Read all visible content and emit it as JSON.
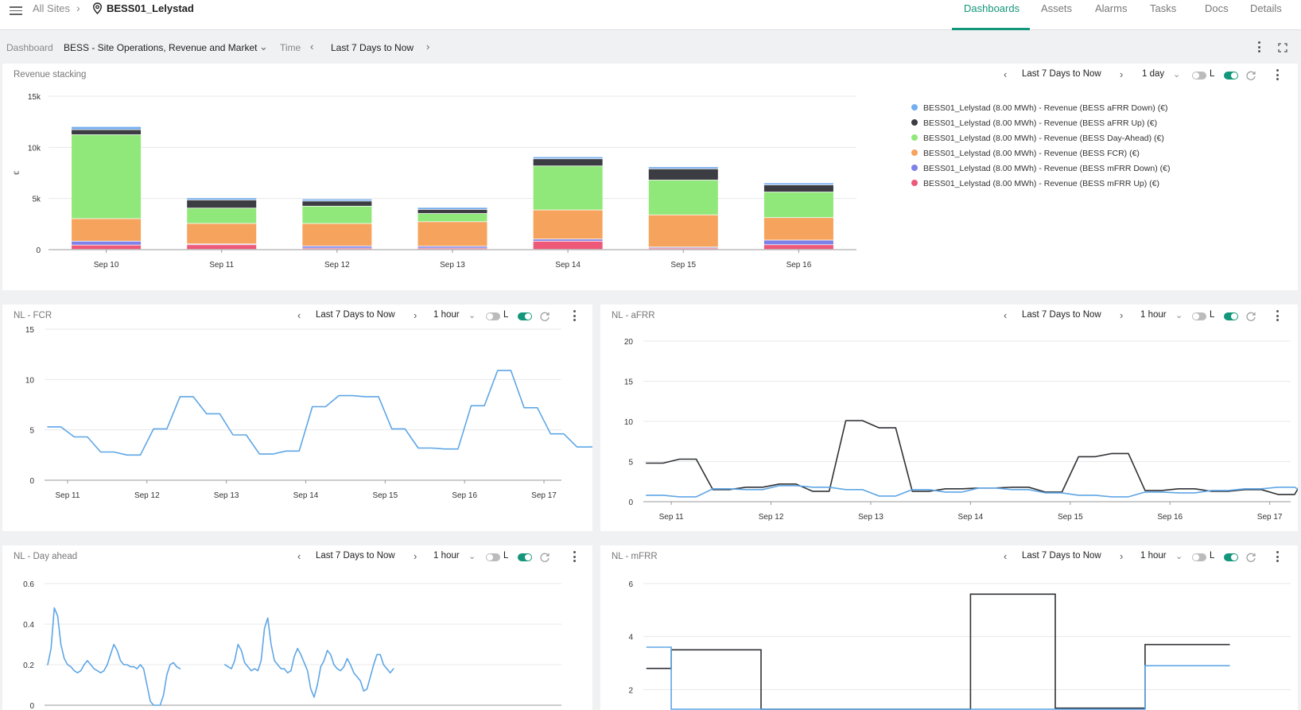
{
  "breadcrumb": {
    "all_sites": "All Sites",
    "site": "BESS01_Lelystad"
  },
  "nav": {
    "tabs": [
      {
        "label": "Dashboards",
        "active": true
      },
      {
        "label": "Assets"
      },
      {
        "label": "Alarms"
      },
      {
        "label": "Tasks"
      },
      {
        "label": "Docs"
      },
      {
        "label": "Details"
      }
    ]
  },
  "toolbar": {
    "dashboard_label": "Dashboard",
    "dashboard_value": "BESS - Site Operations, Revenue and Market",
    "time_label": "Time",
    "time_value": "Last 7 Days to Now"
  },
  "colors": {
    "accent": "#14967a",
    "afrr_down": "#74aef0",
    "afrr_up": "#3b3d42",
    "day_ahead": "#91e87a",
    "fcr": "#f6a35d",
    "mfrr_down": "#7e82e8",
    "mfrr_up": "#ee5879",
    "line_blue": "#5ea6e6",
    "line_dark": "#2f3135"
  },
  "panels": {
    "revenue": {
      "title": "Revenue stacking",
      "range": "Last 7 Days to Now",
      "interval": "1 day",
      "toggle_label": "L"
    },
    "fcr": {
      "title": "NL - FCR",
      "range": "Last 7 Days to Now",
      "interval": "1 hour",
      "toggle_label": "L"
    },
    "afrr": {
      "title": "NL - aFRR",
      "range": "Last 7 Days to Now",
      "interval": "1 hour",
      "toggle_label": "L"
    },
    "dayahead": {
      "title": "NL - Day ahead",
      "range": "Last 7 Days to Now",
      "interval": "1 hour",
      "toggle_label": "L"
    },
    "mfrr": {
      "title": "NL - mFRR",
      "range": "Last 7 Days to Now",
      "interval": "1 hour",
      "toggle_label": "L"
    }
  },
  "chart_data": [
    {
      "id": "revenue",
      "type": "bar",
      "stacked": true,
      "categories": [
        "Sep 10",
        "Sep 11",
        "Sep 12",
        "Sep 13",
        "Sep 14",
        "Sep 15",
        "Sep 16"
      ],
      "ylabel": "€",
      "ylim": [
        0,
        15000
      ],
      "yticks": [
        0,
        5000,
        10000,
        15000
      ],
      "ytick_labels": [
        "0",
        "5k",
        "10k",
        "15k"
      ],
      "legend_position": "right",
      "series": [
        {
          "name": "BESS01_Lelystad (8.00 MWh) - Revenue (BESS mFRR Up) (€)",
          "key": "mfrr_up",
          "values": [
            420,
            450,
            120,
            120,
            800,
            120,
            450
          ]
        },
        {
          "name": "BESS01_Lelystad (8.00 MWh) - Revenue (BESS mFRR Down) (€)",
          "key": "mfrr_down",
          "values": [
            380,
            80,
            200,
            180,
            200,
            100,
            450
          ]
        },
        {
          "name": "BESS01_Lelystad (8.00 MWh) - Revenue (BESS FCR) (€)",
          "key": "fcr",
          "values": [
            2200,
            2000,
            2200,
            2400,
            2850,
            3150,
            2200
          ]
        },
        {
          "name": "BESS01_Lelystad (8.00 MWh) - Revenue (BESS Day-Ahead) (€)",
          "key": "day_ahead",
          "values": [
            8200,
            1500,
            1700,
            800,
            4300,
            3400,
            2500
          ]
        },
        {
          "name": "BESS01_Lelystad (8.00 MWh) - Revenue (BESS aFRR Up) (€)",
          "key": "afrr_up",
          "values": [
            500,
            800,
            500,
            400,
            700,
            1100,
            700
          ]
        },
        {
          "name": "BESS01_Lelystad (8.00 MWh) - Revenue (BESS aFRR Down) (€)",
          "key": "afrr_down",
          "values": [
            300,
            200,
            200,
            200,
            200,
            200,
            200
          ]
        }
      ],
      "legend_order": [
        "afrr_down",
        "afrr_up",
        "day_ahead",
        "fcr",
        "mfrr_down",
        "mfrr_up"
      ]
    },
    {
      "id": "fcr",
      "type": "line",
      "xlim": [
        "Sep 10 18:00",
        "Sep 17 12:00"
      ],
      "xtick_labels": [
        "Sep 11",
        "Sep 12",
        "Sep 13",
        "Sep 14",
        "Sep 15",
        "Sep 16",
        "Sep 17"
      ],
      "ylim": [
        0,
        15
      ],
      "yticks": [
        0,
        5,
        10,
        15
      ],
      "series": [
        {
          "color": "line_blue",
          "x_start_day": 10.75,
          "x_step_hours": 4,
          "values": [
            5.3,
            5.3,
            4.3,
            4.3,
            2.8,
            2.8,
            2.5,
            2.5,
            5.1,
            5.1,
            8.3,
            8.3,
            6.6,
            6.6,
            4.5,
            4.5,
            2.6,
            2.6,
            2.9,
            2.9,
            7.3,
            7.3,
            8.4,
            8.4,
            8.3,
            8.3,
            5.1,
            5.1,
            3.2,
            3.2,
            3.1,
            3.1,
            7.4,
            7.4,
            10.9,
            10.9,
            7.2,
            7.2,
            4.6,
            4.6,
            3.3,
            3.3,
            3.4,
            3.4,
            7.1,
            7.1,
            12.7,
            12.7,
            9.6,
            9.6,
            6.4,
            6.4,
            4.5,
            4.5,
            3.0,
            3.0,
            6.5,
            6.5,
            13.2,
            13.2,
            12.4,
            12.4,
            6.4,
            6.4,
            4.5,
            4.5,
            2.9,
            2.9,
            5.5,
            5.5,
            10.4,
            10.4,
            5.8,
            5.8,
            5.3,
            5.3
          ]
        }
      ]
    },
    {
      "id": "afrr",
      "type": "line",
      "xlim": [
        "Sep 10 18:00",
        "Sep 17 12:00"
      ],
      "xtick_labels": [
        "Sep 11",
        "Sep 12",
        "Sep 13",
        "Sep 14",
        "Sep 15",
        "Sep 16",
        "Sep 17"
      ],
      "ylim": [
        0,
        20
      ],
      "yticks": [
        0,
        5,
        10,
        15,
        20
      ],
      "series": [
        {
          "color": "line_dark",
          "x_start_day": 10.75,
          "x_step_hours": 4,
          "values": [
            4.8,
            4.8,
            5.3,
            5.3,
            1.5,
            1.5,
            1.8,
            1.8,
            2.2,
            2.2,
            1.3,
            1.3,
            10.1,
            10.1,
            9.2,
            9.2,
            1.3,
            1.3,
            1.6,
            1.6,
            1.7,
            1.7,
            1.8,
            1.8,
            1.2,
            1.2,
            5.6,
            5.6,
            6.0,
            6.0,
            1.4,
            1.4,
            1.6,
            1.6,
            1.3,
            1.3,
            1.5,
            1.5,
            0.9,
            0.9,
            4.5,
            4.5,
            6.0,
            6.0,
            1.4,
            1.4,
            1.6,
            1.6,
            4.2,
            4.2,
            1.2,
            1.2,
            6.1,
            6.1,
            9.4,
            9.4,
            1.2,
            1.2,
            4.4,
            4.4,
            1.2,
            1.2,
            17.3,
            17.3,
            10.0,
            10.0,
            1.0,
            1.0,
            3.2,
            3.2,
            3.4,
            3.4,
            1.0,
            1.0,
            9.7,
            9.7,
            7.3,
            7.3
          ]
        },
        {
          "color": "line_blue",
          "x_start_day": 10.75,
          "x_step_hours": 4,
          "values": [
            0.8,
            0.8,
            0.6,
            0.6,
            1.6,
            1.6,
            1.5,
            1.5,
            2.0,
            2.0,
            1.8,
            1.8,
            1.5,
            1.5,
            0.7,
            0.7,
            1.5,
            1.5,
            1.2,
            1.2,
            1.7,
            1.7,
            1.5,
            1.5,
            1.1,
            1.1,
            0.8,
            0.8,
            0.6,
            0.6,
            1.2,
            1.2,
            1.1,
            1.1,
            1.4,
            1.4,
            1.6,
            1.6,
            1.8,
            1.8,
            0.6,
            0.6,
            0.7,
            0.7,
            1.6,
            1.6,
            1.8,
            1.8,
            1.5,
            1.5,
            1.6,
            1.6,
            0.6,
            0.6,
            0.5,
            0.5,
            1.4,
            1.4,
            1.3,
            1.3,
            1.5,
            1.5,
            1.7,
            1.7,
            0.6,
            0.6,
            1.2,
            1.2,
            1.5,
            1.5,
            1.4,
            1.4,
            1.6,
            1.6,
            1.5,
            1.5,
            1.4,
            1.4
          ]
        }
      ]
    },
    {
      "id": "dayahead",
      "type": "line",
      "ylim": [
        0,
        0.6
      ],
      "yticks": [
        0,
        0.2,
        0.4,
        0.6
      ],
      "ytick_labels": [
        "0",
        "0.2",
        "0.4",
        "0.6"
      ],
      "series": [
        {
          "color": "line_blue",
          "segments": [
            {
              "x_start_day": 10.75,
              "x_step_hours": 1,
              "values": [
                0.2,
                0.28,
                0.48,
                0.44,
                0.3,
                0.23,
                0.2,
                0.19,
                0.17,
                0.16,
                0.17,
                0.2,
                0.22,
                0.2,
                0.18,
                0.17,
                0.16,
                0.17,
                0.2,
                0.25,
                0.3,
                0.27,
                0.22,
                0.2,
                0.2,
                0.19,
                0.19,
                0.18,
                0.2,
                0.18,
                0.1,
                0.02,
                0.0,
                0.0,
                0.0,
                0.05,
                0.15,
                0.2,
                0.21,
                0.19,
                0.18
              ]
            },
            {
              "x_start_day": 12.98,
              "x_step_hours": 1,
              "values": [
                0.2,
                0.19,
                0.18,
                0.22,
                0.3,
                0.27,
                0.21,
                0.19,
                0.17,
                0.18,
                0.17,
                0.22,
                0.38,
                0.43,
                0.3,
                0.22,
                0.2,
                0.18,
                0.18,
                0.16,
                0.17,
                0.24,
                0.28,
                0.25,
                0.21,
                0.17,
                0.08,
                0.04,
                0.1,
                0.19,
                0.22,
                0.27,
                0.25,
                0.2,
                0.18,
                0.17,
                0.19,
                0.23,
                0.2,
                0.16,
                0.14,
                0.12,
                0.07,
                0.08,
                0.14,
                0.2,
                0.25,
                0.25,
                0.2,
                0.18,
                0.16,
                0.18
              ]
            }
          ]
        }
      ]
    },
    {
      "id": "mfrr",
      "type": "line",
      "ylim": [
        0,
        6
      ],
      "yticks": [
        2,
        4,
        6
      ],
      "series": [
        {
          "color": "line_dark",
          "step_points": [
            [
              10.75,
              2.8
            ],
            [
              11.0,
              2.8
            ],
            [
              11.0,
              3.5
            ],
            [
              11.9,
              3.5
            ],
            [
              11.9,
              0
            ],
            [
              13.3,
              0
            ],
            [
              13.3,
              0.4
            ],
            [
              14.0,
              0.4
            ],
            [
              14.0,
              5.6
            ],
            [
              14.85,
              5.6
            ],
            [
              14.85,
              1.3
            ],
            [
              15.75,
              1.3
            ],
            [
              15.75,
              3.7
            ],
            [
              16.6,
              3.7
            ]
          ]
        },
        {
          "color": "line_blue",
          "step_points": [
            [
              10.75,
              3.6
            ],
            [
              11.0,
              3.6
            ],
            [
              11.0,
              0
            ],
            [
              15.75,
              0
            ],
            [
              15.75,
              2.9
            ],
            [
              16.6,
              2.9
            ]
          ]
        }
      ]
    }
  ]
}
